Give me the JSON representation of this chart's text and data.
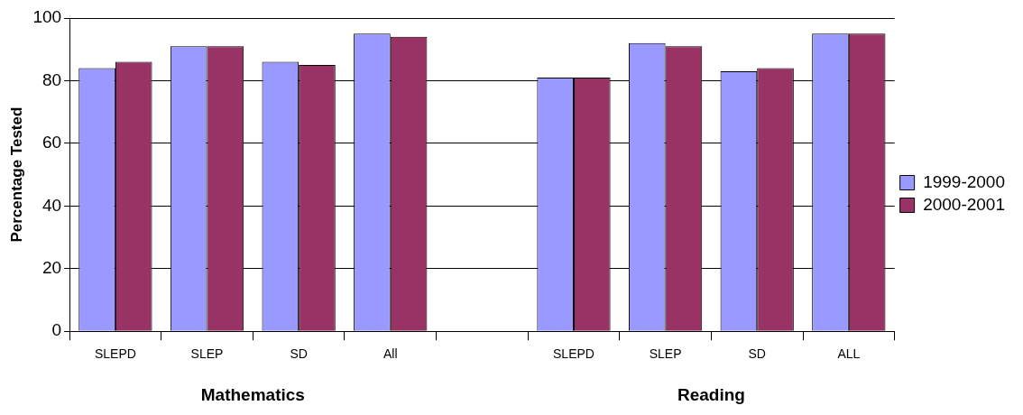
{
  "chart_data": {
    "type": "bar",
    "ylabel": "Percentage Tested",
    "categories": [
      "SLEPD",
      "SLEP",
      "SD",
      "All",
      null,
      "SLEPD",
      "SLEP",
      "SD",
      "ALL"
    ],
    "series": [
      {
        "name": "1999-2000",
        "color": "#9999ff",
        "values": [
          84,
          91,
          86,
          95,
          null,
          81,
          92,
          83,
          95
        ]
      },
      {
        "name": "2000-2001",
        "color": "#993366",
        "values": [
          86,
          91,
          85,
          94,
          null,
          81,
          91,
          84,
          95
        ]
      }
    ],
    "ylim": [
      0,
      100
    ],
    "yticks": [
      0,
      20,
      40,
      60,
      80,
      100
    ],
    "grid": "y",
    "legend": "right",
    "annotations": [
      "Mathematics",
      "Reading"
    ]
  }
}
